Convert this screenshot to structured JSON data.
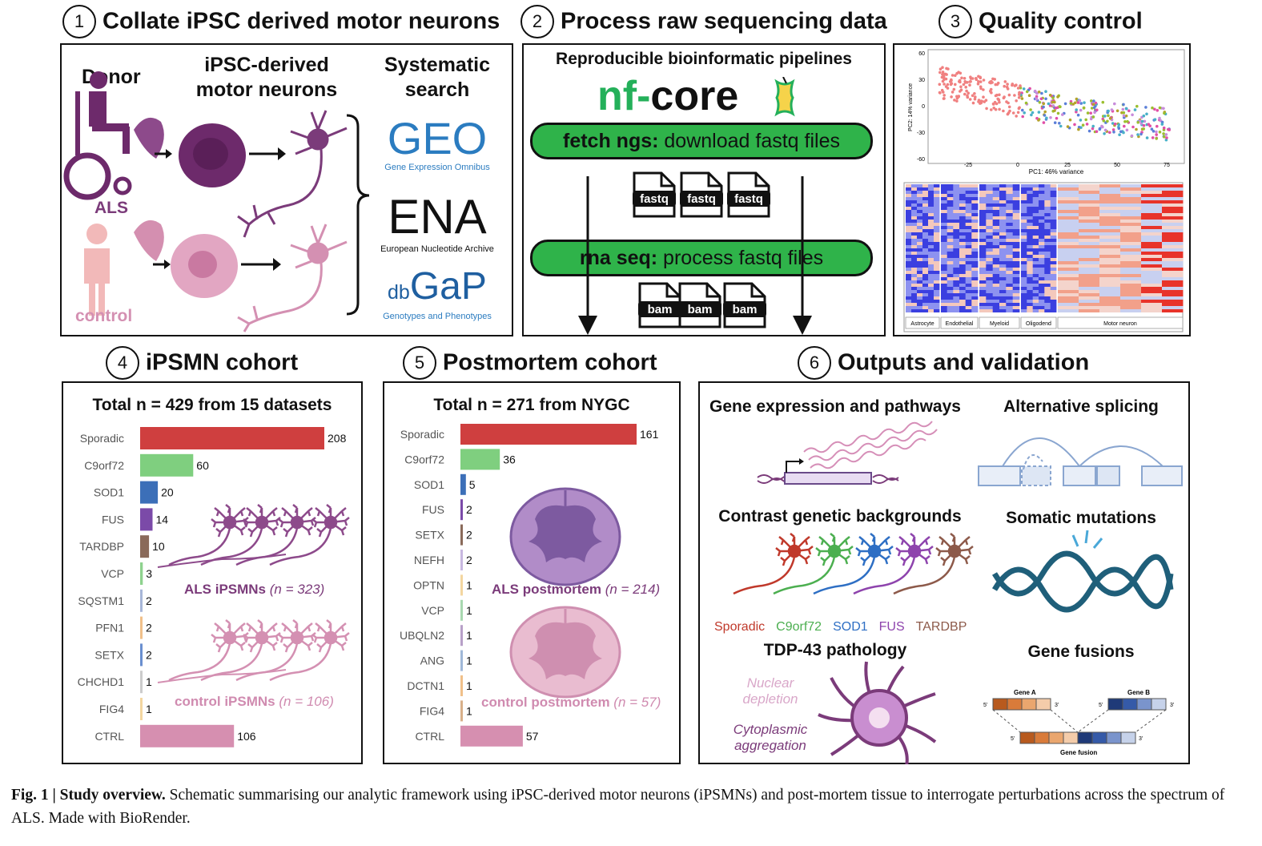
{
  "panels": {
    "p1": {
      "num": "1",
      "title": "Collate iPSC derived motor neurons",
      "donor": "Donor",
      "ipsc_line1": "iPSC-derived",
      "ipsc_line2": "motor neurons",
      "search_line1": "Systematic",
      "search_line2": "search",
      "als": "ALS",
      "control": "control",
      "geo": "GEO",
      "geo_sub": "Gene Expression Omnibus",
      "ena": "ENA",
      "ena_sub": "European Nucleotide Archive",
      "dbgap_small": "db",
      "dbgap_big": "GaP",
      "dbgap_sub": "Genotypes and Phenotypes"
    },
    "p2": {
      "num": "2",
      "title": "Process raw sequencing data",
      "subtitle": "Reproducible bioinformatic pipelines",
      "nf": "nf",
      "dash": "-",
      "core": "core",
      "fetch_bold": "fetch ngs:",
      "fetch_rest": " download fastq files",
      "rna_bold": "rna seq:",
      "rna_rest": " process fastq files",
      "file1": "fastq",
      "file2": "bam"
    },
    "p3": {
      "num": "3",
      "title": "Quality control",
      "pca_xlabel": "PC1: 46% variance",
      "pca_ylabel": "PC2: 14% variance",
      "pca_yticks": [
        "60",
        "30",
        "0",
        "-30",
        "-60"
      ],
      "pca_xticks": [
        "-25",
        "0",
        "25",
        "50",
        "75"
      ],
      "heat_labels": [
        "Astrocyte",
        "Endothelial",
        "Myeloid",
        "Oligodend",
        "Motor neuron"
      ]
    },
    "p4": {
      "num": "4",
      "title": "iPSMN cohort",
      "total": "Total n = 429 from 15 datasets",
      "als_label": "ALS iPSMNs",
      "als_n": "(n = 323)",
      "ctrl_label": "control iPSMNs",
      "ctrl_n": "(n = 106)"
    },
    "p5": {
      "num": "5",
      "title": "Postmortem cohort",
      "total": "Total n = 271 from NYGC",
      "als_label": "ALS postmortem",
      "als_n": "(n = 214)",
      "ctrl_label": "control postmortem",
      "ctrl_n": "(n = 57)"
    },
    "p6": {
      "num": "6",
      "title": "Outputs and validation",
      "gene_expr": "Gene expression and pathways",
      "alt_splice": "Alternative splicing",
      "contrast": "Contrast genetic backgrounds",
      "somatic": "Somatic mutations",
      "tdp": "TDP-43 pathology",
      "fusions": "Gene fusions",
      "nuclear1": "Nuclear",
      "nuclear2": "depletion",
      "cyto1": "Cytoplasmic",
      "cyto2": "aggregation",
      "geneA": "Gene A",
      "geneB": "Gene B",
      "gene_fusion": "Gene fusion",
      "five": "5'",
      "three": "3'",
      "backgrounds": [
        {
          "label": "Sporadic",
          "color": "#c0392b"
        },
        {
          "label": "C9orf72",
          "color": "#4caf50"
        },
        {
          "label": "SOD1",
          "color": "#2e6fc4"
        },
        {
          "label": "FUS",
          "color": "#8e44ad"
        },
        {
          "label": "TARDBP",
          "color": "#8d5a4a"
        }
      ]
    }
  },
  "chart_data": [
    {
      "type": "bar",
      "orientation": "horizontal",
      "categories": [
        "Sporadic",
        "C9orf72",
        "SOD1",
        "FUS",
        "TARDBP",
        "VCP",
        "SQSTM1",
        "PFN1",
        "SETX",
        "CHCHD1",
        "FIG4",
        "CTRL"
      ],
      "values": [
        208,
        60,
        20,
        14,
        10,
        3,
        2,
        2,
        2,
        1,
        1,
        106
      ],
      "colors": [
        "#cf3f3f",
        "#7fcf7f",
        "#3c6fb8",
        "#7b4aa8",
        "#8a6a5a",
        "#8ed28e",
        "#a7b6d8",
        "#f0c08a",
        "#6a8fcf",
        "#cccccc",
        "#f3d6a0",
        "#d68fb0"
      ],
      "title": "Total n = 429 from 15 datasets",
      "xlim": [
        0,
        208
      ]
    },
    {
      "type": "bar",
      "orientation": "horizontal",
      "categories": [
        "Sporadic",
        "C9orf72",
        "SOD1",
        "FUS",
        "SETX",
        "NEFH",
        "OPTN",
        "VCP",
        "UBQLN2",
        "ANG",
        "DCTN1",
        "FIG4",
        "CTRL"
      ],
      "values": [
        161,
        36,
        5,
        2,
        2,
        2,
        1,
        1,
        1,
        1,
        1,
        1,
        57
      ],
      "colors": [
        "#cf3f3f",
        "#7fcf7f",
        "#3c6fb8",
        "#7b4aa8",
        "#8a6a5a",
        "#c8b8e0",
        "#f3d6a0",
        "#a8d8b0",
        "#b7a0c8",
        "#a0b8d8",
        "#f0c08a",
        "#d8b08a",
        "#d68fb0"
      ],
      "title": "Total n = 271 from NYGC",
      "xlim": [
        0,
        161
      ]
    }
  ],
  "caption": {
    "bold": "Fig. 1 | Study overview.",
    "text": " Schematic summarising our analytic framework using iPSC-derived motor neurons (iPSMNs) and post-mortem tissue to interrogate perturbations across the spectrum of ALS. Made with BioRender."
  }
}
